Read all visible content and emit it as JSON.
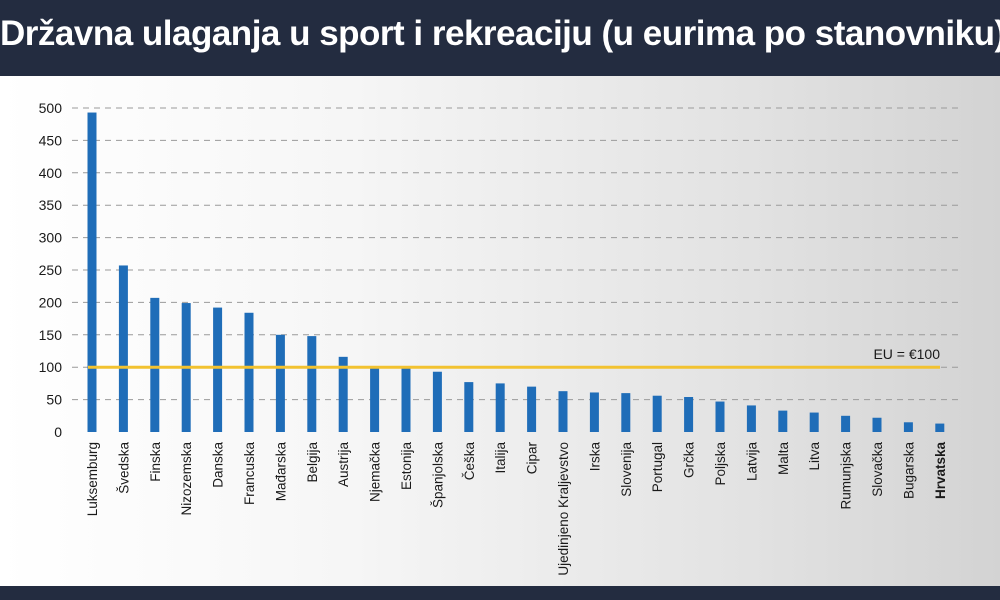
{
  "title": "Državna ulaganja u sport i rekreaciju (u eurima po stanovniku)",
  "colors": {
    "background_dark": "#232c40",
    "bar": "#1f6db8",
    "reference_line": "#f2c230",
    "grid": "#9a9a9a"
  },
  "chart_data": {
    "type": "bar",
    "title": "Državna ulaganja u sport i rekreaciju (u eurima po stanovniku)",
    "xlabel": "",
    "ylabel": "",
    "ylim": [
      0,
      500
    ],
    "yticks": [
      0,
      50,
      100,
      150,
      200,
      250,
      300,
      350,
      400,
      450,
      500
    ],
    "grid": "horizontal dashed",
    "categories": [
      "Luksemburg",
      "Švedska",
      "Finska",
      "Nizozemska",
      "Danska",
      "Francuska",
      "Mađarska",
      "Belgija",
      "Austrija",
      "Njemačka",
      "Estonija",
      "Španjolska",
      "Češka",
      "Italija",
      "Cipar",
      "Ujedinjeno Kraljevstvo",
      "Irska",
      "Slovenija",
      "Portugal",
      "Grčka",
      "Poljska",
      "Latvija",
      "Malta",
      "Litva",
      "Rumunjska",
      "Slovačka",
      "Bugarska",
      "Hrvatska"
    ],
    "values": [
      493,
      257,
      207,
      199,
      192,
      184,
      150,
      148,
      116,
      99,
      98,
      93,
      77,
      75,
      70,
      63,
      61,
      60,
      56,
      54,
      47,
      41,
      33,
      30,
      25,
      22,
      15,
      13
    ],
    "highlight_category": "Hrvatska",
    "reference_line": {
      "value": 100,
      "label": "EU = €100"
    }
  }
}
